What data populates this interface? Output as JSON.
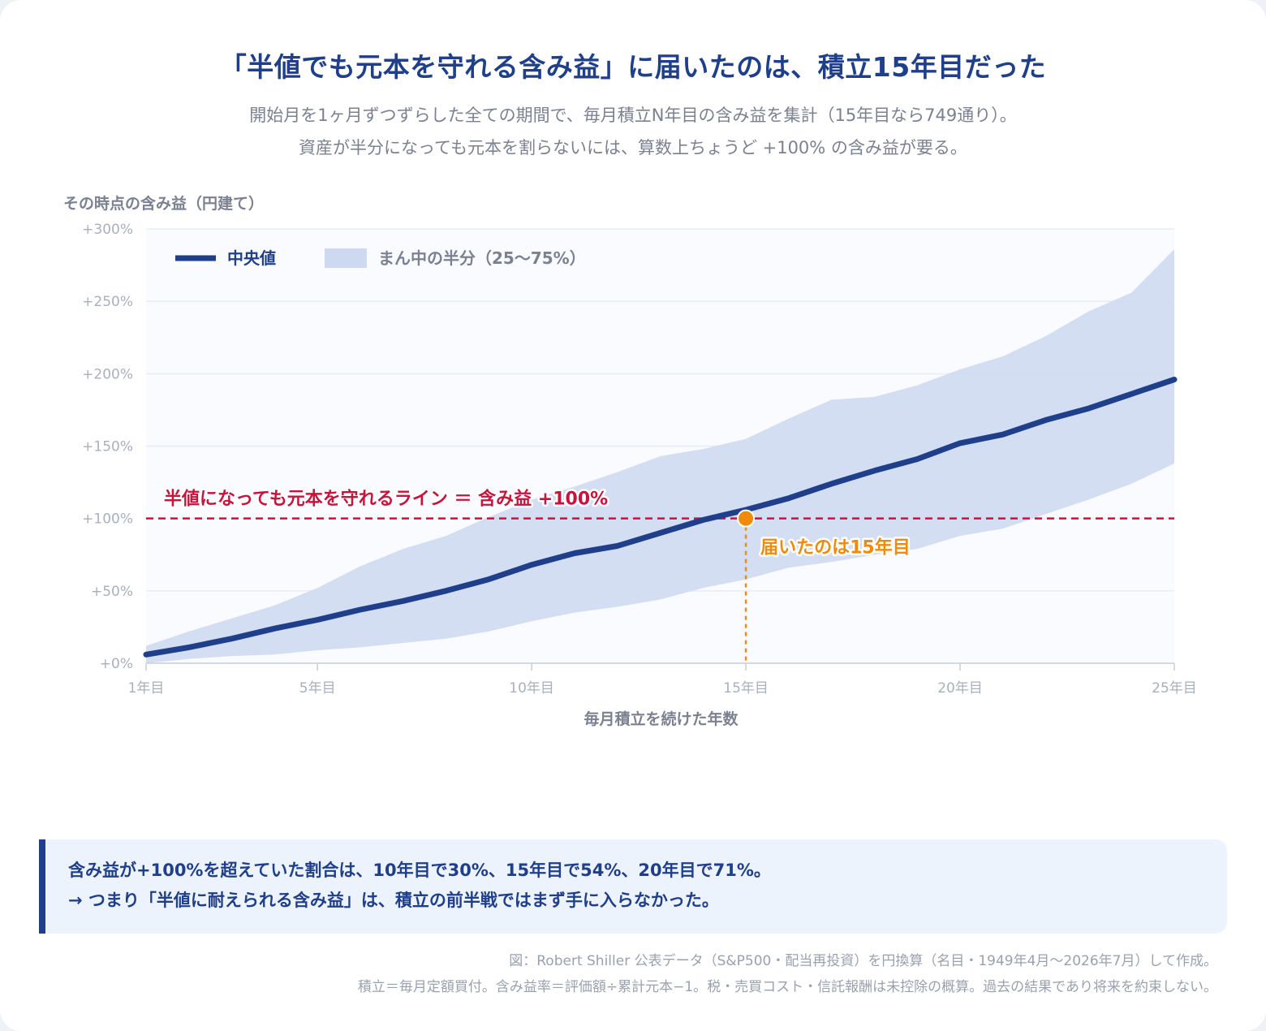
{
  "title": "「半値でも元本を守れる含み益」に届いたのは、積立15年目だった",
  "subtitle_lines": [
    "開始月を1ヶ月ずつずらした全ての期間で、毎月積立N年目の含み益を集計（15年目なら749通り）。",
    "資産が半分になっても元本を割らないには、算数上ちょうど +100% の含み益が要る。"
  ],
  "chart_data": {
    "type": "line",
    "ylabel": "その時点の含み益（円建て）",
    "xlabel": "毎月積立を続けた年数",
    "x": [
      1,
      2,
      3,
      4,
      5,
      6,
      7,
      8,
      9,
      10,
      11,
      12,
      13,
      14,
      15,
      16,
      17,
      18,
      19,
      20,
      21,
      22,
      23,
      24,
      25
    ],
    "xlim": [
      1,
      25
    ],
    "ylim": [
      0,
      300
    ],
    "x_ticks": [
      {
        "value": 1,
        "label": "1年目"
      },
      {
        "value": 5,
        "label": "5年目"
      },
      {
        "value": 10,
        "label": "10年目"
      },
      {
        "value": 15,
        "label": "15年目"
      },
      {
        "value": 20,
        "label": "20年目"
      },
      {
        "value": 25,
        "label": "25年目"
      }
    ],
    "y_ticks": [
      {
        "value": 0,
        "label": "+0%"
      },
      {
        "value": 50,
        "label": "+50%"
      },
      {
        "value": 100,
        "label": "+100%"
      },
      {
        "value": 150,
        "label": "+150%"
      },
      {
        "value": 200,
        "label": "+200%"
      },
      {
        "value": 250,
        "label": "+250%"
      },
      {
        "value": 300,
        "label": "+300%"
      }
    ],
    "grid": true,
    "legend_position": "top-left",
    "series": [
      {
        "name": "中央値",
        "kind": "line",
        "color": "#1f3f8a",
        "values": [
          6,
          11,
          17,
          24,
          30,
          37,
          43,
          50,
          58,
          68,
          76,
          81,
          90,
          99,
          106,
          114,
          124,
          133,
          141,
          152,
          158,
          168,
          176,
          186,
          196
        ]
      },
      {
        "name": "まん中の半分（25〜75%）",
        "kind": "band",
        "color": "#cdd8f1",
        "lower": [
          0,
          3,
          5,
          6,
          9,
          11,
          14,
          17,
          22,
          29,
          35,
          39,
          44,
          52,
          58,
          66,
          70,
          75,
          79,
          88,
          93,
          103,
          113,
          124,
          138
        ],
        "upper": [
          12,
          22,
          31,
          40,
          52,
          67,
          79,
          88,
          101,
          113,
          122,
          132,
          143,
          148,
          155,
          169,
          182,
          184,
          192,
          203,
          212,
          226,
          243,
          256,
          286
        ]
      }
    ],
    "threshold": {
      "value": 100,
      "label": "半値になっても元本を守れるライン ＝ 含み益 +100%",
      "color": "#c8143c"
    },
    "marker": {
      "x": 15,
      "y": 100,
      "label": "届いたのは15年目",
      "color": "#ef8a0a"
    }
  },
  "note_lines": [
    "含み益が+100%を超えていた割合は、10年目で30%、15年目で54%、20年目で71%。",
    "→ つまり「半値に耐えられる含み益」は、積立の前半戦ではまず手に入らなかった。"
  ],
  "footer_lines": [
    "図：Robert Shiller 公表データ（S&P500・配当再投資）を円換算（名目・1949年4月〜2026年7月）して作成。",
    "積立＝毎月定額買付。含み益率＝評価額÷累計元本−1。税・売買コスト・信託報酬は未控除の概算。過去の結果であり将来を約束しない。"
  ]
}
